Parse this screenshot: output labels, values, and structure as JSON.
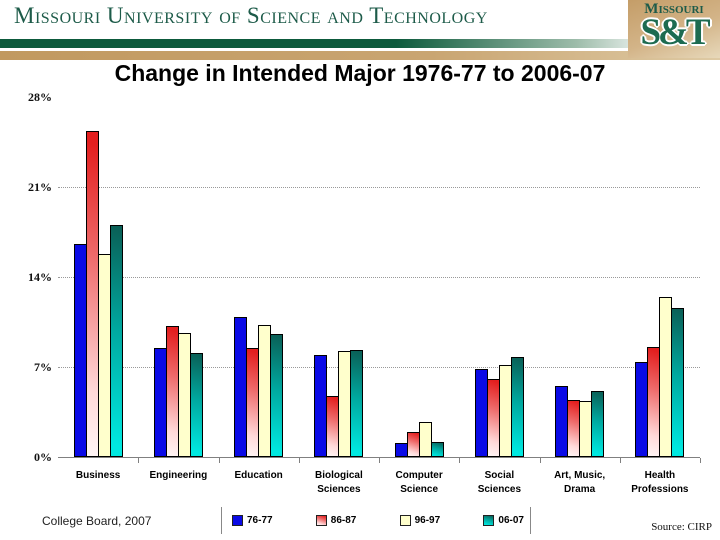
{
  "header": {
    "wordmark": "Missouri University of Science and Technology",
    "logo": {
      "top": "Missouri",
      "main": "S&T"
    },
    "brand_green": "#1d5b49",
    "band_green": "#0d5a3c",
    "band_tan": "#c1995f"
  },
  "title": "Change in Intended Major 1976-77 to 2006-07",
  "footer": {
    "left_note": "College Board, 2007",
    "source_note": "Source: CIRP"
  },
  "chart_data": {
    "type": "bar",
    "title": "Change in Intended Major 1976-77 to 2006-07",
    "categories": [
      {
        "name": "Business",
        "lines": [
          "Business"
        ]
      },
      {
        "name": "Engineering",
        "lines": [
          "Engineering"
        ]
      },
      {
        "name": "Education",
        "lines": [
          "Education"
        ]
      },
      {
        "name": "Biological Sciences",
        "lines": [
          "Biological",
          "Sciences"
        ]
      },
      {
        "name": "Computer Science",
        "lines": [
          "Computer",
          "Science"
        ]
      },
      {
        "name": "Social Sciences",
        "lines": [
          "Social",
          "Sciences"
        ]
      },
      {
        "name": "Art, Music, Drama",
        "lines": [
          "Art, Music,",
          "Drama"
        ]
      },
      {
        "name": "Health Professions",
        "lines": [
          "Health",
          "Professions"
        ]
      }
    ],
    "series": [
      {
        "name": "76-77",
        "color": "#0a0ae6",
        "fill": "solid blue",
        "values": [
          16.4,
          8.3,
          10.7,
          7.8,
          0.9,
          6.7,
          5.4,
          7.2
        ]
      },
      {
        "name": "86-87",
        "color": "#e32222",
        "fill": "red-to-white gradient",
        "values": [
          25.2,
          10.0,
          8.3,
          4.6,
          1.8,
          5.9,
          4.3,
          8.4
        ]
      },
      {
        "name": "96-97",
        "color": "#ffffcc",
        "fill": "solid cream",
        "values": [
          15.6,
          9.5,
          10.1,
          8.1,
          2.6,
          7.0,
          4.2,
          12.3
        ]
      },
      {
        "name": "06-07",
        "color": "#00b5ae",
        "fill": "dark-teal-to-cyan gradient",
        "values": [
          17.9,
          7.9,
          9.4,
          8.2,
          1.0,
          7.6,
          5.0,
          11.4
        ]
      }
    ],
    "yticks": [
      "0%",
      "7%",
      "14%",
      "21%",
      "28%"
    ],
    "ylim": [
      0,
      28
    ],
    "ytick_step": 7,
    "grid": "horizontal dotted lines at 7%, 14%, 21%",
    "legend_position": "bottom-center"
  }
}
